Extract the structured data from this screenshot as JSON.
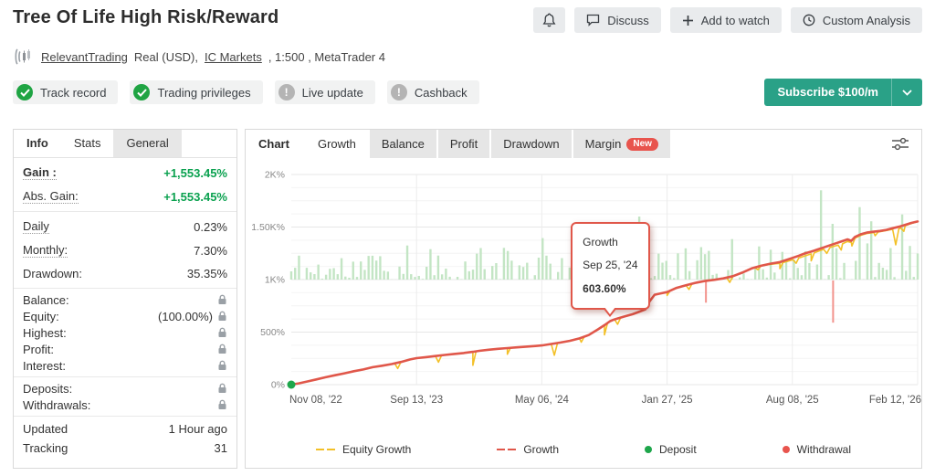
{
  "page": {
    "title": "Tree Of Life High Risk/Reward"
  },
  "header": {
    "actions": [
      {
        "icon": "bell",
        "label": ""
      },
      {
        "icon": "chat",
        "label": "Discuss"
      },
      {
        "icon": "plus",
        "label": "Add to watch"
      },
      {
        "icon": "clock",
        "label": "Custom Analysis"
      }
    ]
  },
  "account": {
    "owner": "RelevantTrading",
    "meta1": "Real (USD),",
    "broker": "IC Markets",
    "meta2": ", 1:500 , MetaTrader 4"
  },
  "badges": [
    {
      "label": "Track record",
      "status": "ok"
    },
    {
      "label": "Trading privileges",
      "status": "ok"
    },
    {
      "label": "Live update",
      "status": "off"
    },
    {
      "label": "Cashback",
      "status": "off"
    }
  ],
  "subscribe": {
    "label": "Subscribe $100/m"
  },
  "info_panel": {
    "tabs": [
      {
        "label": "Info",
        "active": true,
        "gray": false
      },
      {
        "label": "Stats",
        "active": false,
        "gray": false
      },
      {
        "label": "General",
        "active": false,
        "gray": true
      }
    ],
    "groups": [
      {
        "density": "roomy",
        "rows": [
          {
            "label": "Gain :",
            "value": "+1,553.45%",
            "green": true,
            "bold": true,
            "dotted": true
          },
          {
            "label": "Abs. Gain:",
            "value": "+1,553.45%",
            "green": true,
            "dotted": true
          }
        ]
      },
      {
        "density": "roomy",
        "rows": [
          {
            "label": "Daily",
            "value": "0.23%",
            "dotted": true
          },
          {
            "label": "Monthly:",
            "value": "7.30%",
            "dotted": true
          },
          {
            "label": "Drawdown:",
            "value": "35.35%"
          }
        ]
      },
      {
        "density": "compact",
        "rows": [
          {
            "label": "Balance:",
            "locked": true
          },
          {
            "label": "Equity:",
            "value": "(100.00%)",
            "locked": true
          },
          {
            "label": "Highest:",
            "locked": true
          },
          {
            "label": "Profit:",
            "locked": true
          },
          {
            "label": "Interest:",
            "locked": true
          }
        ]
      },
      {
        "density": "compact",
        "rows": [
          {
            "label": "Deposits:",
            "locked": true
          },
          {
            "label": "Withdrawals:",
            "locked": true
          }
        ]
      },
      {
        "density": "mid",
        "rows": [
          {
            "label": "Updated",
            "value": "1 Hour ago"
          },
          {
            "label": "Tracking",
            "value": "31"
          }
        ]
      }
    ]
  },
  "chart_panel": {
    "label": "Chart",
    "tabs": [
      {
        "label": "Growth",
        "active": true
      },
      {
        "label": "Balance",
        "active": false
      },
      {
        "label": "Profit",
        "active": false
      },
      {
        "label": "Drawdown",
        "active": false
      },
      {
        "label": "Margin",
        "active": false,
        "badge": "New"
      }
    ]
  },
  "chart_data": {
    "type": "line",
    "title": "Growth",
    "ylim": [
      0,
      2000
    ],
    "grid": {
      "minor_step": 125,
      "major_step": 500
    },
    "y_ticks": [
      {
        "v": 0,
        "label": "0%"
      },
      {
        "v": 500,
        "label": "500%"
      },
      {
        "v": 1000,
        "label": "1K%"
      },
      {
        "v": 1500,
        "label": "1.50K%"
      },
      {
        "v": 2000,
        "label": "2K%"
      }
    ],
    "x_ticks": [
      "Nov 08, '22",
      "Sep 13, '23",
      "May 06, '24",
      "Jan 27, '25",
      "Aug 08, '25",
      "Feb 12, '26"
    ],
    "series": [
      {
        "name": "Growth",
        "color": "#e0574a",
        "points": [
          [
            0,
            0
          ],
          [
            0.012,
            12
          ],
          [
            0.025,
            30
          ],
          [
            0.04,
            50
          ],
          [
            0.055,
            70
          ],
          [
            0.07,
            90
          ],
          [
            0.085,
            108
          ],
          [
            0.1,
            128
          ],
          [
            0.115,
            144
          ],
          [
            0.13,
            166
          ],
          [
            0.145,
            180
          ],
          [
            0.16,
            196
          ],
          [
            0.175,
            216
          ],
          [
            0.19,
            240
          ],
          [
            0.2,
            252
          ],
          [
            0.215,
            262
          ],
          [
            0.23,
            272
          ],
          [
            0.245,
            283
          ],
          [
            0.26,
            292
          ],
          [
            0.275,
            301
          ],
          [
            0.29,
            312
          ],
          [
            0.3,
            322
          ],
          [
            0.315,
            332
          ],
          [
            0.33,
            341
          ],
          [
            0.345,
            348
          ],
          [
            0.36,
            355
          ],
          [
            0.375,
            362
          ],
          [
            0.39,
            368
          ],
          [
            0.4,
            373
          ],
          [
            0.415,
            387
          ],
          [
            0.43,
            401
          ],
          [
            0.445,
            417
          ],
          [
            0.46,
            440
          ],
          [
            0.475,
            472
          ],
          [
            0.49,
            527
          ],
          [
            0.5,
            566
          ],
          [
            0.509,
            604
          ],
          [
            0.516,
            621
          ],
          [
            0.53,
            646
          ],
          [
            0.545,
            670
          ],
          [
            0.555,
            692
          ],
          [
            0.565,
            716
          ],
          [
            0.572,
            792
          ],
          [
            0.58,
            856
          ],
          [
            0.59,
            869
          ],
          [
            0.6,
            881
          ],
          [
            0.615,
            921
          ],
          [
            0.63,
            946
          ],
          [
            0.645,
            969
          ],
          [
            0.66,
            986
          ],
          [
            0.675,
            997
          ],
          [
            0.69,
            1011
          ],
          [
            0.705,
            1032
          ],
          [
            0.72,
            1066
          ],
          [
            0.735,
            1106
          ],
          [
            0.75,
            1131
          ],
          [
            0.765,
            1151
          ],
          [
            0.78,
            1166
          ],
          [
            0.79,
            1186
          ],
          [
            0.8,
            1206
          ],
          [
            0.81,
            1226
          ],
          [
            0.82,
            1249
          ],
          [
            0.83,
            1266
          ],
          [
            0.84,
            1286
          ],
          [
            0.85,
            1306
          ],
          [
            0.86,
            1326
          ],
          [
            0.87,
            1346
          ],
          [
            0.88,
            1366
          ],
          [
            0.888,
            1383
          ],
          [
            0.894,
            1369
          ],
          [
            0.9,
            1406
          ],
          [
            0.91,
            1433
          ],
          [
            0.92,
            1449
          ],
          [
            0.93,
            1456
          ],
          [
            0.94,
            1463
          ],
          [
            0.95,
            1473
          ],
          [
            0.96,
            1489
          ],
          [
            0.97,
            1503
          ],
          [
            0.98,
            1521
          ],
          [
            0.99,
            1539
          ],
          [
            1,
            1553
          ]
        ]
      },
      {
        "name": "Equity Growth",
        "color": "#f3c027",
        "offsets": [
          [
            0,
            0
          ],
          [
            0.75,
            0
          ],
          [
            0.79,
            16
          ],
          [
            0.82,
            24
          ],
          [
            0.85,
            18
          ],
          [
            0.88,
            26
          ],
          [
            0.9,
            12
          ],
          [
            0.93,
            8
          ],
          [
            0.955,
            6
          ],
          [
            0.97,
            20
          ],
          [
            0.985,
            6
          ],
          [
            1,
            2
          ]
        ],
        "dips": [
          [
            0.17,
            55
          ],
          [
            0.235,
            62
          ],
          [
            0.29,
            128
          ],
          [
            0.345,
            58
          ],
          [
            0.42,
            112
          ],
          [
            0.463,
            42
          ],
          [
            0.5,
            92
          ],
          [
            0.521,
            55
          ],
          [
            0.6,
            32
          ],
          [
            0.635,
            48
          ],
          [
            0.7,
            52
          ],
          [
            0.745,
            30
          ],
          [
            0.78,
            50
          ],
          [
            0.806,
            42
          ],
          [
            0.83,
            66
          ],
          [
            0.855,
            48
          ],
          [
            0.878,
            56
          ],
          [
            0.895,
            40
          ],
          [
            0.932,
            32
          ],
          [
            0.965,
            150
          ],
          [
            0.978,
            46
          ]
        ]
      }
    ],
    "activity_bars": {
      "color": "#c3e5c4",
      "baseline": 1000,
      "count": 163,
      "seed": 11,
      "typical_max": 1320,
      "spikes": [
        [
          0.22,
          1290
        ],
        [
          0.3,
          1300
        ],
        [
          0.555,
          1600
        ],
        [
          0.62,
          1250
        ],
        [
          0.705,
          1385
        ],
        [
          0.845,
          1850
        ],
        [
          0.862,
          1530
        ],
        [
          0.905,
          1690
        ],
        [
          0.927,
          1555
        ],
        [
          0.955,
          1300
        ],
        [
          0.975,
          1620
        ],
        [
          0.99,
          1320
        ]
      ]
    },
    "markers": {
      "deposit": {
        "t": 0,
        "v": 0,
        "color": "#1ea64b"
      },
      "withdrawal_color": "#f2938c",
      "withdrawals": [
        {
          "t": 0.662,
          "from": 1000,
          "to": 780
        },
        {
          "t": 0.865,
          "from": 1000,
          "to": 590
        }
      ]
    },
    "tooltip": {
      "title": "Growth",
      "date": "Sep 25, '24",
      "value": "603.60%",
      "t": 0.509,
      "v": 603.6
    },
    "legend": [
      {
        "label": "Equity Growth",
        "marker": "line",
        "color": "#f3c027"
      },
      {
        "label": "Growth",
        "marker": "line",
        "color": "#e0574a"
      },
      {
        "label": "Deposit",
        "marker": "dot",
        "color": "#1ea64b"
      },
      {
        "label": "Withdrawal",
        "marker": "dot",
        "color": "#e8544d"
      }
    ],
    "legend_position": "bottom"
  }
}
